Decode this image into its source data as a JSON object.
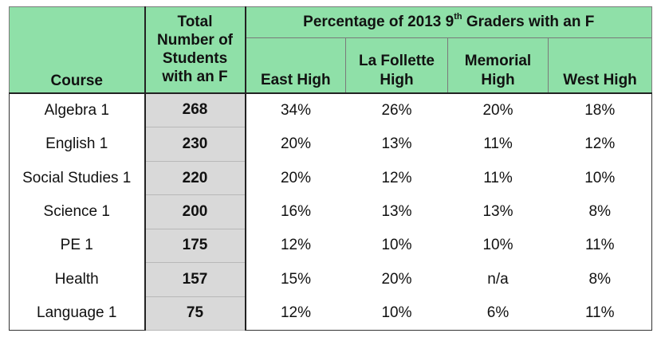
{
  "header": {
    "course": "Course",
    "total_line1": "Total",
    "total_line2": "Number of",
    "total_line3": "Students",
    "total_line4": "with an F",
    "group_prefix": "Percentage of 2013 9",
    "group_sup": "th",
    "group_suffix": " Graders with an F",
    "schools": [
      {
        "line1": "East High",
        "line2": ""
      },
      {
        "line1": "La Follette",
        "line2": "High"
      },
      {
        "line1": "Memorial",
        "line2": "High"
      },
      {
        "line1": "West High",
        "line2": ""
      }
    ]
  },
  "rows": [
    {
      "course": "Algebra 1",
      "total": "268",
      "east": "34%",
      "lafollette": "26%",
      "memorial": "20%",
      "west": "18%"
    },
    {
      "course": "English 1",
      "total": "230",
      "east": "20%",
      "lafollette": "13%",
      "memorial": "11%",
      "west": "12%"
    },
    {
      "course": "Social Studies 1",
      "total": "220",
      "east": "20%",
      "lafollette": "12%",
      "memorial": "11%",
      "west": "10%"
    },
    {
      "course": "Science 1",
      "total": "200",
      "east": "16%",
      "lafollette": "13%",
      "memorial": "13%",
      "west": "8%"
    },
    {
      "course": "PE 1",
      "total": "175",
      "east": "12%",
      "lafollette": "10%",
      "memorial": "10%",
      "west": "11%"
    },
    {
      "course": "Health",
      "total": "157",
      "east": "15%",
      "lafollette": "20%",
      "memorial": "n/a",
      "west": "8%"
    },
    {
      "course": "Language 1",
      "total": "75",
      "east": "12%",
      "lafollette": "10%",
      "memorial": "6%",
      "west": "11%"
    }
  ],
  "colors": {
    "header_background": "#8fe0a8",
    "total_column_background": "#d9d9d9"
  }
}
